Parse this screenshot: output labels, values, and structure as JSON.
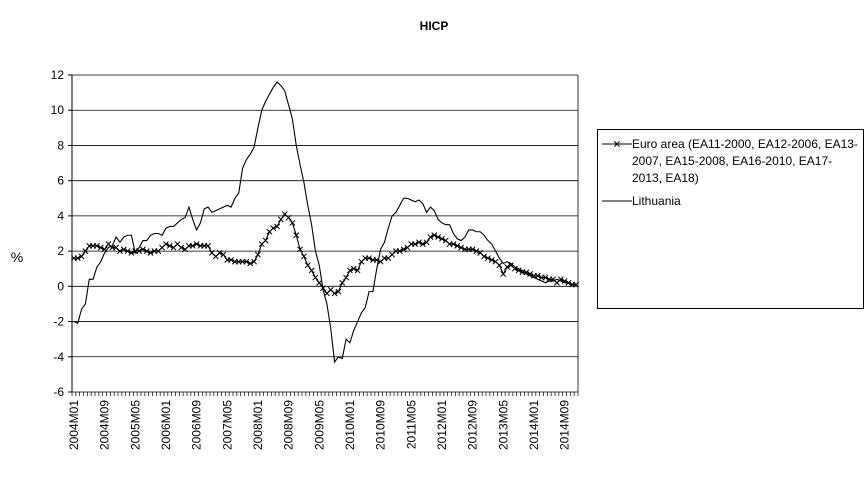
{
  "chart_data": {
    "type": "line",
    "title": "HICP",
    "y_label": "%",
    "categories": [
      "2004M01",
      null,
      null,
      null,
      null,
      null,
      null,
      null,
      "2004M09",
      null,
      null,
      null,
      null,
      null,
      null,
      null,
      "2005M05",
      null,
      null,
      null,
      null,
      null,
      null,
      null,
      "2006M01",
      null,
      null,
      null,
      null,
      null,
      null,
      null,
      "2006M09",
      null,
      null,
      null,
      null,
      null,
      null,
      null,
      "2007M05",
      null,
      null,
      null,
      null,
      null,
      null,
      null,
      "2008M01",
      null,
      null,
      null,
      null,
      null,
      null,
      null,
      "2008M09",
      null,
      null,
      null,
      null,
      null,
      null,
      null,
      "2009M05",
      null,
      null,
      null,
      null,
      null,
      null,
      null,
      "2010M01",
      null,
      null,
      null,
      null,
      null,
      null,
      null,
      "2010M09",
      null,
      null,
      null,
      null,
      null,
      null,
      null,
      "2011M05",
      null,
      null,
      null,
      null,
      null,
      null,
      null,
      "2012M01",
      null,
      null,
      null,
      null,
      null,
      null,
      null,
      "2012M09",
      null,
      null,
      null,
      null,
      null,
      null,
      null,
      "2013M05",
      null,
      null,
      null,
      null,
      null,
      null,
      null,
      "2014M01",
      null,
      null,
      null,
      null,
      null,
      null,
      null,
      "2014M09",
      null,
      null,
      null
    ],
    "series": [
      {
        "name": "Euro area (EA11-2000, EA12-2006, EA13-2007, EA15-2008, EA16-2010, EA17-2013, EA18)",
        "color": "#000000",
        "marker": "x",
        "values": [
          1.6,
          1.6,
          1.7,
          2.0,
          2.3,
          2.3,
          2.3,
          2.2,
          2.1,
          2.4,
          2.2,
          2.2,
          2.0,
          2.1,
          2.0,
          1.9,
          2.0,
          2.0,
          2.1,
          2.0,
          1.9,
          2.0,
          2.0,
          2.2,
          2.4,
          2.3,
          2.2,
          2.4,
          2.2,
          2.1,
          2.3,
          2.3,
          2.4,
          2.3,
          2.3,
          2.3,
          1.9,
          1.7,
          1.9,
          1.8,
          1.5,
          1.5,
          1.4,
          1.4,
          1.4,
          1.4,
          1.3,
          1.4,
          1.8,
          2.4,
          2.6,
          3.1,
          3.3,
          3.4,
          3.8,
          4.1,
          3.9,
          3.6,
          2.9,
          2.1,
          1.7,
          1.2,
          0.9,
          0.5,
          0.2,
          -0.1,
          -0.4,
          -0.2,
          -0.4,
          -0.3,
          0.2,
          0.5,
          0.9,
          1.0,
          0.9,
          1.4,
          1.6,
          1.6,
          1.5,
          1.5,
          1.4,
          1.6,
          1.6,
          1.8,
          2.0,
          2.0,
          2.1,
          2.2,
          2.4,
          2.4,
          2.5,
          2.4,
          2.5,
          2.8,
          2.9,
          2.8,
          2.7,
          2.6,
          2.4,
          2.4,
          2.3,
          2.2,
          2.1,
          2.1,
          2.1,
          2.0,
          1.9,
          1.7,
          1.6,
          1.5,
          1.4,
          1.2,
          0.7,
          1.1,
          1.2,
          1.0,
          0.9,
          0.8,
          0.8,
          0.7,
          0.6,
          0.6,
          0.5,
          0.5,
          0.4,
          0.4,
          0.2,
          0.4,
          0.3,
          0.2,
          0.1,
          0.1
        ]
      },
      {
        "name": "Lithuania",
        "color": "#000000",
        "values": [
          -2.0,
          -2.1,
          -1.3,
          -1.0,
          0.4,
          0.4,
          1.1,
          1.4,
          1.9,
          2.2,
          2.3,
          2.8,
          2.5,
          2.8,
          2.9,
          2.9,
          1.9,
          2.2,
          2.6,
          2.6,
          2.9,
          3.0,
          3.0,
          2.9,
          3.3,
          3.4,
          3.4,
          3.6,
          3.8,
          3.9,
          4.5,
          3.8,
          3.2,
          3.6,
          4.4,
          4.5,
          4.2,
          4.3,
          4.4,
          4.5,
          4.6,
          4.5,
          5.0,
          5.3,
          6.7,
          7.2,
          7.5,
          7.9,
          9.0,
          10.0,
          10.5,
          10.9,
          11.3,
          11.6,
          11.4,
          11.1,
          10.3,
          9.5,
          8.0,
          6.9,
          5.9,
          4.6,
          3.5,
          2.0,
          1.2,
          -0.2,
          -1.0,
          -2.4,
          -4.3,
          -4.0,
          -4.1,
          -3.0,
          -3.2,
          -2.5,
          -2.0,
          -1.5,
          -1.2,
          -0.3,
          -0.3,
          1.0,
          2.1,
          2.5,
          3.3,
          4.0,
          4.2,
          4.6,
          5.0,
          5.0,
          4.9,
          4.8,
          4.9,
          4.7,
          4.2,
          4.5,
          4.3,
          3.8,
          3.6,
          3.5,
          3.5,
          3.0,
          2.7,
          2.6,
          2.8,
          3.2,
          3.2,
          3.1,
          3.1,
          2.9,
          2.6,
          2.4,
          2.0,
          1.6,
          1.3,
          1.4,
          1.3,
          1.1,
          1.0,
          0.9,
          0.7,
          0.6,
          0.5,
          0.4,
          0.3,
          0.2,
          0.3,
          0.3,
          0.4,
          0.3,
          0.2,
          0.2,
          0.1,
          0.1
        ]
      }
    ],
    "ylim": [
      -6,
      12
    ],
    "yticks": [
      -6,
      -4,
      -2,
      0,
      2,
      4,
      6,
      8,
      10,
      12
    ],
    "grid": true,
    "legend": "right"
  }
}
